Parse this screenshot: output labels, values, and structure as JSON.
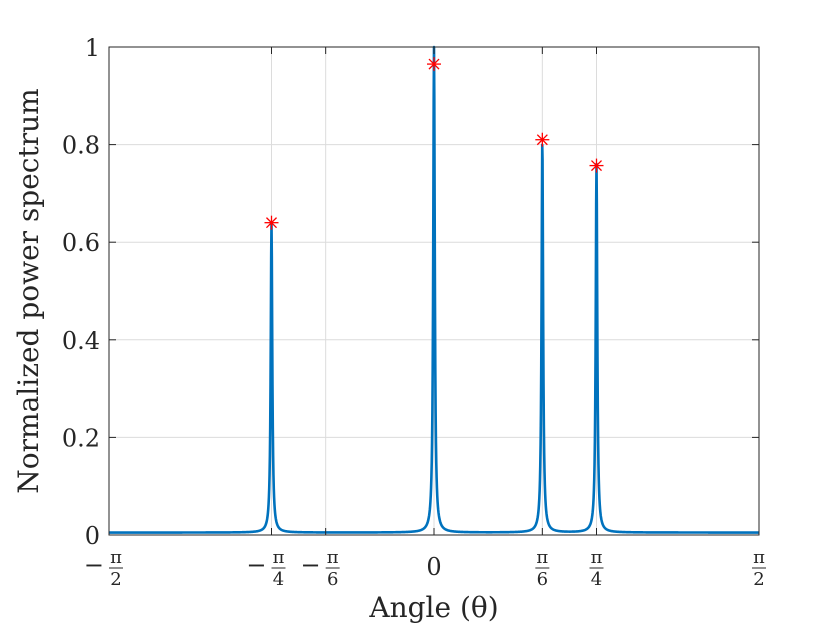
{
  "chart_data": {
    "type": "line",
    "xlabel": "Angle (θ)",
    "ylabel": "Normalized power spectrum",
    "xlim": [
      -1.5708,
      1.5708
    ],
    "ylim": [
      0,
      1
    ],
    "grid": true,
    "x_ticks": [
      {
        "value": -1.5708,
        "sign": "−",
        "num": "π",
        "den": "2"
      },
      {
        "value": -0.7854,
        "sign": "−",
        "num": "π",
        "den": "4"
      },
      {
        "value": -0.5236,
        "sign": "−",
        "num": "π",
        "den": "6"
      },
      {
        "value": 0,
        "text": "0"
      },
      {
        "value": 0.5236,
        "sign": "",
        "num": "π",
        "den": "6"
      },
      {
        "value": 0.7854,
        "sign": "",
        "num": "π",
        "den": "4"
      },
      {
        "value": 1.5708,
        "sign": "",
        "num": "π",
        "den": "2"
      }
    ],
    "y_ticks": [
      0,
      0.2,
      0.4,
      0.6,
      0.8,
      1
    ],
    "y_tick_labels": [
      "0",
      "0.2",
      "0.4",
      "0.6",
      "0.8",
      "1"
    ],
    "series": [
      {
        "type": "spectrum",
        "color": "#0072BD",
        "baseline": 0.005,
        "peaks": [
          {
            "x": -0.7854,
            "y": 0.64
          },
          {
            "x": 0,
            "y": 1.0
          },
          {
            "x": 0.5236,
            "y": 0.81
          },
          {
            "x": 0.7854,
            "y": 0.76
          }
        ]
      },
      {
        "type": "markers",
        "marker": "asterisk",
        "color": "#ff0000",
        "points": [
          {
            "x": -0.7854,
            "y": 0.64
          },
          {
            "x": 0,
            "y": 0.965
          },
          {
            "x": 0.5236,
            "y": 0.81
          },
          {
            "x": 0.7854,
            "y": 0.757
          }
        ]
      }
    ]
  }
}
